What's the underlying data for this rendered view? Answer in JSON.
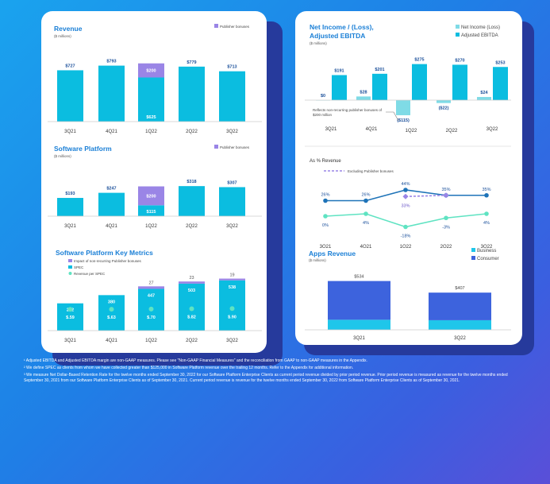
{
  "colors": {
    "cyan": "#0bbde0",
    "purple": "#9a85e6",
    "mint": "#5fe3c2",
    "lightcyan": "#7fdbe6",
    "navy": "#1e73b8",
    "indigo": "#3d63dd",
    "title": "#1a7fd6"
  },
  "revenue": {
    "title": "Revenue",
    "subtitle": "($ millions)",
    "legend": "Publisher bonuses",
    "chart_data": {
      "type": "bar",
      "categories": [
        "3Q21",
        "4Q21",
        "1Q22",
        "2Q22",
        "3Q22"
      ],
      "series": [
        {
          "name": "Revenue",
          "values": [
            727,
            793,
            625,
            779,
            713
          ],
          "labels": [
            "$727",
            "$793",
            "$625",
            "$779",
            "$713"
          ]
        },
        {
          "name": "Publisher bonuses",
          "values": [
            0,
            0,
            200,
            0,
            0
          ],
          "labels": [
            "",
            "",
            "$200",
            "",
            ""
          ]
        }
      ]
    }
  },
  "software": {
    "title": "Software Platform",
    "subtitle": "($ millions)",
    "legend": "Publisher bonuses",
    "chart_data": {
      "type": "bar",
      "categories": [
        "3Q21",
        "4Q21",
        "1Q22",
        "2Q22",
        "3Q22"
      ],
      "series": [
        {
          "name": "Software Platform",
          "values": [
            193,
            247,
            115,
            318,
            307
          ],
          "labels": [
            "$193",
            "$247",
            "$115",
            "$318",
            "$307"
          ]
        },
        {
          "name": "Publisher bonuses",
          "values": [
            0,
            0,
            200,
            0,
            0
          ],
          "labels": [
            "",
            "",
            "$200",
            "",
            ""
          ]
        }
      ]
    }
  },
  "metrics": {
    "title": "Software Platform Key Metrics",
    "legend": [
      "Impact of non-recurring Publisher bonuses",
      "SPEC",
      "Revenue per SPEC"
    ],
    "chart_data": {
      "type": "bar",
      "categories": [
        "3Q21",
        "4Q21",
        "1Q22",
        "2Q22",
        "3Q22"
      ],
      "series": [
        {
          "name": "SPEC",
          "values": [
            292,
            380,
            447,
            503,
            538
          ],
          "labels": [
            "292",
            "380",
            "447",
            "503",
            "538"
          ]
        },
        {
          "name": "Impact of non-recurring Publisher bonuses",
          "values": [
            0,
            0,
            27,
            23,
            19
          ],
          "labels": [
            "",
            "",
            "27",
            "23",
            "19"
          ]
        },
        {
          "name": "Revenue per SPEC",
          "values": [
            0.59,
            0.63,
            0.7,
            0.82,
            0.9
          ],
          "labels": [
            "$.59",
            "$.63",
            "$.70",
            "$.82",
            "$.90"
          ]
        }
      ]
    }
  },
  "netincome": {
    "title_line1": "Net Income / (Loss),",
    "title_line2": "Adjusted EBITDA",
    "subtitle": "($ millions)",
    "legend": [
      "Net Income (Loss)",
      "Adjusted EBITDA"
    ],
    "annotation_line1": "Reflects non-recurring publisher bonuses of",
    "annotation_line2": "$200 million",
    "chart_data": {
      "type": "bar",
      "categories": [
        "3Q21",
        "4Q21",
        "1Q22",
        "2Q22",
        "3Q22"
      ],
      "series": [
        {
          "name": "Net Income (Loss)",
          "values": [
            0,
            28,
            -115,
            -22,
            24
          ],
          "labels": [
            "$0",
            "$28",
            "($115)",
            "($22)",
            "$24"
          ]
        },
        {
          "name": "Adjusted EBITDA",
          "values": [
            191,
            201,
            275,
            270,
            253
          ],
          "labels": [
            "$191",
            "$201",
            "$275",
            "$270",
            "$253"
          ]
        }
      ]
    }
  },
  "pctrev": {
    "title": "As % Revenue",
    "legend": "Excluding Publisher bonuses",
    "chart_data": {
      "type": "line",
      "categories": [
        "3Q21",
        "4Q21",
        "1Q22",
        "2Q22",
        "3Q22"
      ],
      "series": [
        {
          "name": "Adjusted EBITDA",
          "values": [
            26,
            26,
            44,
            35,
            35
          ],
          "labels": [
            "26%",
            "26%",
            "44%",
            "35%",
            "35%"
          ]
        },
        {
          "name": "Excluding Publisher bonuses",
          "values": [
            null,
            null,
            33,
            35,
            null
          ],
          "labels": [
            "",
            "",
            "33%",
            "",
            ""
          ]
        },
        {
          "name": "Net Income (Loss)",
          "values": [
            0,
            4,
            -18,
            -3,
            4
          ],
          "labels": [
            "0%",
            "4%",
            "-18%",
            "-3%",
            "4%"
          ]
        }
      ]
    }
  },
  "apps": {
    "title": "Apps Revenue",
    "subtitle": "($ millions)",
    "legend": [
      "Business",
      "Consumer"
    ],
    "chart_data": {
      "type": "bar",
      "categories": [
        "3Q21",
        "3Q22"
      ],
      "series": [
        {
          "name": "Business",
          "values": [
            110,
            105
          ]
        },
        {
          "name": "Consumer",
          "values": [
            424,
            302
          ]
        }
      ],
      "totals": [
        "$534",
        "$407"
      ]
    }
  },
  "footnotes": [
    "¹ Adjusted EBITDA and Adjusted EBITDA margin are non-GAAP measures. Please see \"Non-GAAP Financial Measures\" and the reconciliation from GAAP to non-GAAP measures in the Appendix.",
    "² We define SPEC as clients from whom we have collected greater than $125,000 in Software Platform revenue over the trailing 12 months. Refer to the Appendix for additional information.",
    "³ We measure Net Dollar-Based Retention Rate for the twelve months ended September 30, 2022 for our Software Platform Enterprise Clients as current period revenue divided by prior period revenue. Prior period revenue is measured as revenue for the twelve months ended September 30, 2021 from our Software Platform Enterprise Clients as of September 30, 2021. Current period revenue is revenue for the twelve months ended September 30, 2022 from Software Platform Enterprise Clients as of September 30, 2021."
  ]
}
